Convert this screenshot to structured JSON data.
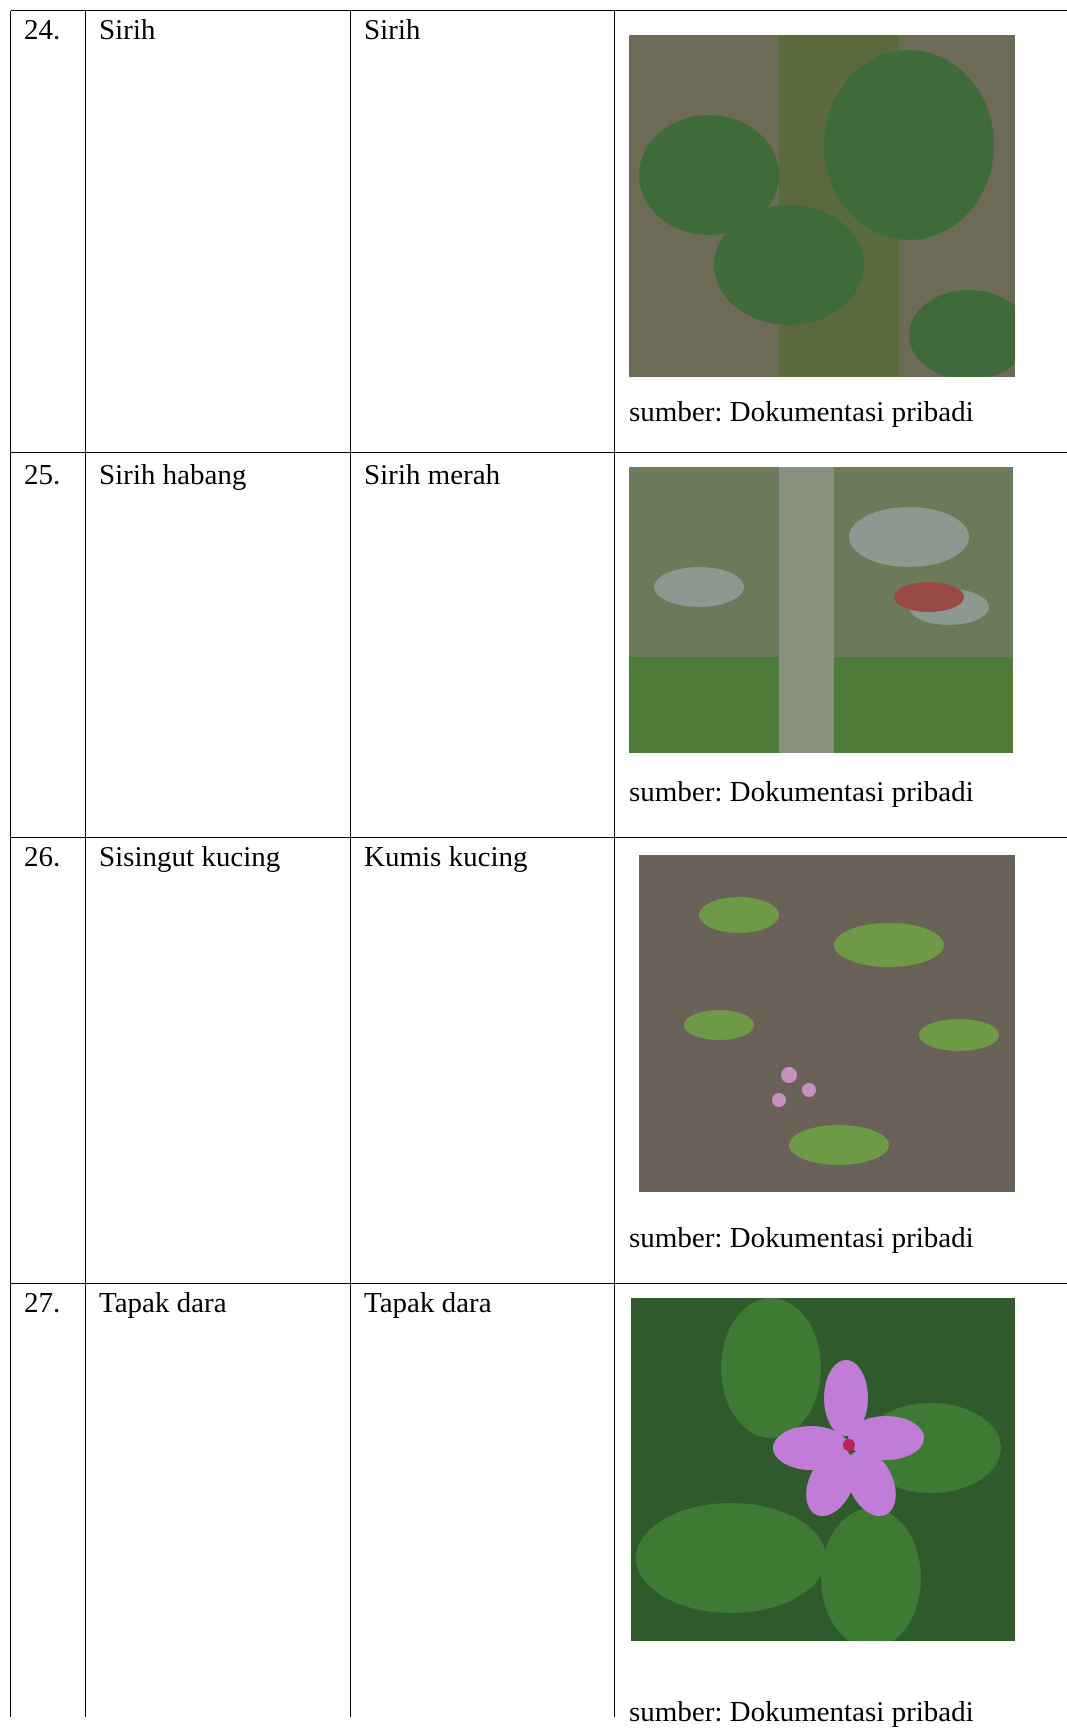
{
  "table": {
    "rows": [
      {
        "number": "24.",
        "local_name": "Sirih",
        "name": "Sirih",
        "caption": "sumber: Dokumentasi pribadi"
      },
      {
        "number": "25.",
        "local_name": "Sirih habang",
        "name": "Sirih merah",
        "caption": "sumber: Dokumentasi pribadi"
      },
      {
        "number": "26.",
        "local_name": "Sisingut kucing",
        "name": "Kumis kucing",
        "caption": "sumber: Dokumentasi pribadi"
      },
      {
        "number": "27.",
        "local_name": "Tapak dara",
        "name": "Tapak dara",
        "caption": "sumber: Dokumentasi pribadi"
      }
    ]
  }
}
